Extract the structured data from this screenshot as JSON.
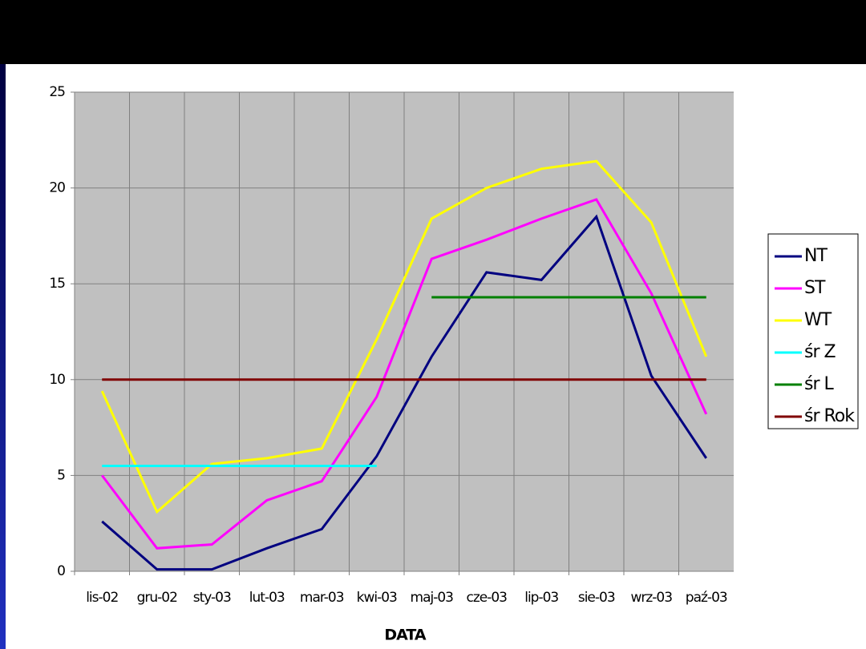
{
  "chart_data": {
    "type": "line",
    "x_label": "DATA",
    "categories": [
      "lis-02",
      "gru-02",
      "sty-03",
      "lut-03",
      "mar-03",
      "kwi-03",
      "maj-03",
      "cze-03",
      "lip-03",
      "sie-03",
      "wrz-03",
      "paź-03"
    ],
    "ylim": [
      0,
      25
    ],
    "yticks": [
      0,
      5,
      10,
      15,
      20,
      25
    ],
    "grid": true,
    "legend": "right",
    "series": [
      {
        "name": "NT",
        "color": "#000080",
        "values": [
          2.6,
          0.1,
          0.1,
          1.2,
          2.2,
          6.0,
          11.2,
          15.6,
          15.2,
          18.5,
          10.2,
          5.9
        ]
      },
      {
        "name": "ST",
        "color": "#ff00ff",
        "values": [
          5.0,
          1.2,
          1.4,
          3.7,
          4.7,
          9.1,
          16.3,
          17.3,
          18.4,
          19.4,
          14.5,
          8.2
        ]
      },
      {
        "name": "WT",
        "color": "#ffff00",
        "values": [
          9.4,
          3.1,
          5.6,
          5.9,
          6.4,
          12.1,
          18.4,
          20.0,
          21.0,
          21.4,
          18.2,
          11.2
        ]
      },
      {
        "name": "śr Z",
        "color": "#00ffff",
        "values": [
          5.5,
          5.5,
          5.5,
          5.5,
          5.5,
          5.5,
          null,
          null,
          null,
          null,
          null,
          null
        ]
      },
      {
        "name": "śr L",
        "color": "#008000",
        "values": [
          null,
          null,
          null,
          null,
          null,
          null,
          14.3,
          14.3,
          14.3,
          14.3,
          14.3,
          14.3
        ]
      },
      {
        "name": "śr Rok",
        "color": "#800000",
        "values": [
          10,
          10,
          10,
          10,
          10,
          10,
          10,
          10,
          10,
          10,
          10,
          10
        ]
      }
    ]
  }
}
